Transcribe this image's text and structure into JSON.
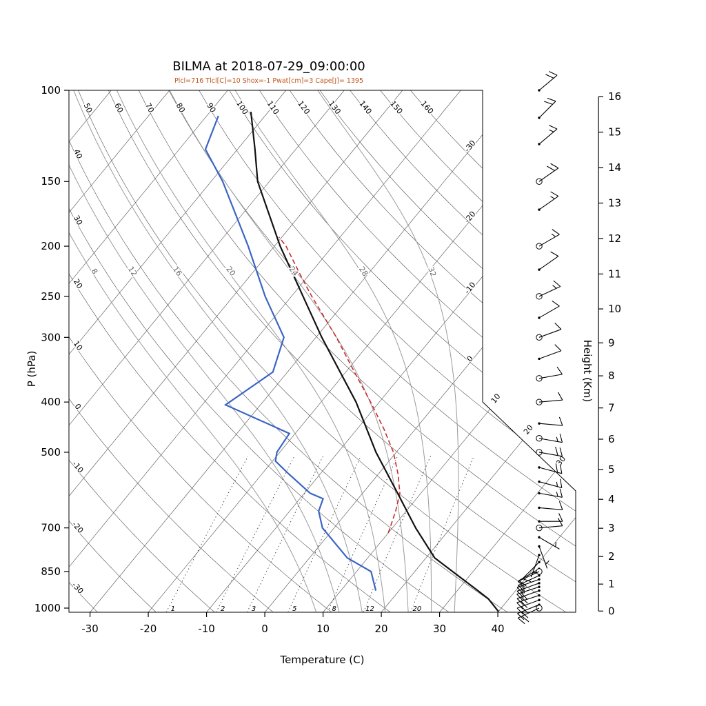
{
  "chart_data": {
    "type": "skewt_logp",
    "title": "BILMA at 2018-07-29_09:00:00",
    "subtitle": "Plcl=716 Tlcl[C]=10 Shox=-1 Pwat[cm]=3 Cape[J]= 1395",
    "axes": {
      "pressure_label": "P (hPa)",
      "temperature_label": "Temperature (C)",
      "height_label": "Height (Km)",
      "pressure_ticks": [
        100,
        150,
        200,
        250,
        300,
        400,
        500,
        700,
        850,
        1000
      ],
      "temperature_ticks": [
        -30,
        -20,
        -10,
        0,
        10,
        20,
        30,
        40
      ],
      "height_ticks_km": [
        0,
        1,
        2,
        3,
        4,
        5,
        6,
        7,
        8,
        9,
        10,
        11,
        12,
        13,
        14,
        15,
        16
      ],
      "pressure_range_hpa": [
        100,
        1020
      ]
    },
    "grid": {
      "isotherms_c": [
        -100,
        -90,
        -80,
        -70,
        -60,
        -50,
        -40,
        -30,
        -20,
        -10,
        0,
        10,
        20,
        30,
        40
      ],
      "isotherm_right_edge_labels": [
        -30,
        -20,
        -10,
        0
      ],
      "isotherm_diagonal_labels": [
        10,
        20,
        30
      ],
      "dry_adiabats_c": [
        -30,
        -20,
        -10,
        0,
        10,
        20,
        30,
        40,
        50,
        60,
        70,
        80,
        90,
        100,
        110,
        120,
        130,
        140,
        150,
        160
      ],
      "moist_adiabats_c": [
        8,
        12,
        16,
        20,
        24,
        28,
        32
      ],
      "moist_adiabat_label_pressure": 225,
      "mixing_ratio_gkg": [
        1,
        2,
        3,
        5,
        8,
        12,
        20
      ]
    },
    "sounding": {
      "temperature": {
        "pressure_hpa": [
          1015,
          960,
          925,
          850,
          800,
          700,
          600,
          500,
          400,
          300,
          250,
          200,
          150,
          130,
          110
        ],
        "temp_c": [
          40,
          36.5,
          33.5,
          26.5,
          21.5,
          14,
          6,
          -3.5,
          -14,
          -29,
          -38,
          -49,
          -62,
          -67,
          -73
        ]
      },
      "dewpoint": {
        "pressure_hpa": [
          925,
          850,
          800,
          700,
          650,
          615,
          600,
          550,
          520,
          500,
          460,
          405,
          350,
          300,
          250,
          200,
          150,
          130,
          112
        ],
        "temp_c": [
          16,
          12.5,
          6.5,
          -2,
          -5,
          -6,
          -9,
          -15.5,
          -19.5,
          -20.5,
          -21,
          -36,
          -32.5,
          -35.5,
          -44.5,
          -54.5,
          -68,
          -75.5,
          -78
        ]
      },
      "parcel": {
        "pressure_hpa": [
          716,
          700,
          650,
          600,
          550,
          500,
          450,
          400,
          350,
          300,
          250,
          225,
          200,
          192
        ],
        "temp_c": [
          10,
          9.6,
          8.2,
          6.4,
          3.3,
          -0.5,
          -5.5,
          -11.5,
          -18.5,
          -26.5,
          -36.5,
          -42,
          -48,
          -50.5
        ]
      }
    },
    "winds": [
      {
        "p": 100,
        "dir_deg": 50,
        "speed_kt": 20,
        "marker": "dot"
      },
      {
        "p": 113,
        "dir_deg": 45,
        "speed_kt": 20,
        "marker": "dot"
      },
      {
        "p": 127,
        "dir_deg": 50,
        "speed_kt": 15,
        "marker": "dot"
      },
      {
        "p": 150,
        "dir_deg": 55,
        "speed_kt": 20,
        "marker": "circle"
      },
      {
        "p": 170,
        "dir_deg": 55,
        "speed_kt": 15,
        "marker": "dot"
      },
      {
        "p": 200,
        "dir_deg": 60,
        "speed_kt": 15,
        "marker": "circle"
      },
      {
        "p": 222,
        "dir_deg": 55,
        "speed_kt": 10,
        "marker": "dot"
      },
      {
        "p": 250,
        "dir_deg": 65,
        "speed_kt": 15,
        "marker": "circle"
      },
      {
        "p": 275,
        "dir_deg": 60,
        "speed_kt": 10,
        "marker": "dot"
      },
      {
        "p": 300,
        "dir_deg": 70,
        "speed_kt": 10,
        "marker": "circle"
      },
      {
        "p": 330,
        "dir_deg": 70,
        "speed_kt": 8,
        "marker": "dot"
      },
      {
        "p": 360,
        "dir_deg": 80,
        "speed_kt": 10,
        "marker": "circle"
      },
      {
        "p": 400,
        "dir_deg": 85,
        "speed_kt": 10,
        "marker": "circle"
      },
      {
        "p": 440,
        "dir_deg": 95,
        "speed_kt": 10,
        "marker": "dot"
      },
      {
        "p": 470,
        "dir_deg": 100,
        "speed_kt": 15,
        "marker": "circle"
      },
      {
        "p": 500,
        "dir_deg": 100,
        "speed_kt": 20,
        "marker": "circle"
      },
      {
        "p": 535,
        "dir_deg": 105,
        "speed_kt": 20,
        "marker": "dot"
      },
      {
        "p": 570,
        "dir_deg": 105,
        "speed_kt": 15,
        "marker": "dot"
      },
      {
        "p": 600,
        "dir_deg": 100,
        "speed_kt": 15,
        "marker": "dot"
      },
      {
        "p": 640,
        "dir_deg": 95,
        "speed_kt": 10,
        "marker": "dot"
      },
      {
        "p": 680,
        "dir_deg": 90,
        "speed_kt": 10,
        "marker": "dot"
      },
      {
        "p": 700,
        "dir_deg": 85,
        "speed_kt": 10,
        "marker": "circle"
      },
      {
        "p": 730,
        "dir_deg": 120,
        "speed_kt": 5,
        "marker": "dot"
      },
      {
        "p": 760,
        "dir_deg": 160,
        "speed_kt": 4,
        "marker": "dot"
      },
      {
        "p": 790,
        "dir_deg": 200,
        "speed_kt": 5,
        "marker": "dot"
      },
      {
        "p": 815,
        "dir_deg": 225,
        "speed_kt": 8,
        "marker": "dot"
      },
      {
        "p": 840,
        "dir_deg": 240,
        "speed_kt": 10,
        "marker": "dot"
      },
      {
        "p": 850,
        "dir_deg": 245,
        "speed_kt": 10,
        "marker": "circle"
      },
      {
        "p": 865,
        "dir_deg": 245,
        "speed_kt": 12,
        "marker": "dot"
      },
      {
        "p": 880,
        "dir_deg": 250,
        "speed_kt": 15,
        "marker": "dot"
      },
      {
        "p": 895,
        "dir_deg": 250,
        "speed_kt": 15,
        "marker": "dot"
      },
      {
        "p": 910,
        "dir_deg": 252,
        "speed_kt": 18,
        "marker": "dot"
      },
      {
        "p": 925,
        "dir_deg": 250,
        "speed_kt": 20,
        "marker": "dot"
      },
      {
        "p": 945,
        "dir_deg": 252,
        "speed_kt": 20,
        "marker": "dot"
      },
      {
        "p": 965,
        "dir_deg": 250,
        "speed_kt": 22,
        "marker": "dot"
      },
      {
        "p": 985,
        "dir_deg": 248,
        "speed_kt": 22,
        "marker": "dot"
      },
      {
        "p": 1000,
        "dir_deg": 245,
        "speed_kt": 20,
        "marker": "circle"
      }
    ],
    "colors": {
      "temperature": "#111111",
      "dewpoint": "#3b64c4",
      "parcel": "#cc2a2a",
      "grid": "#4d4d4d",
      "moist_adiabat": "#9a9a9a",
      "mixing": "#3a3a3a",
      "frame": "#000000",
      "subtitle": "#c0541b"
    }
  }
}
